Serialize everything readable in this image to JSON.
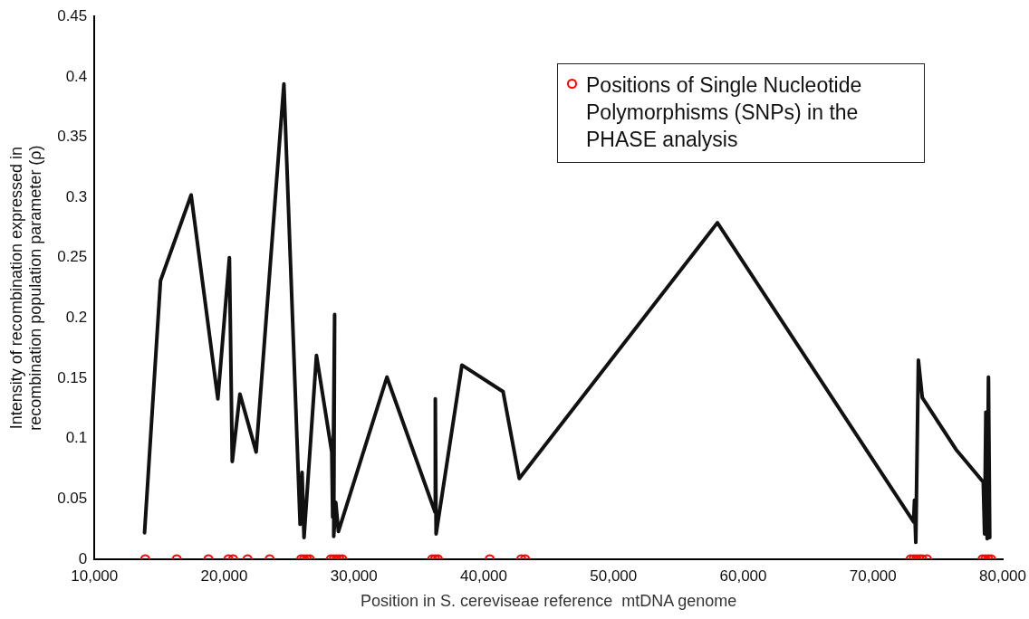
{
  "chart_data": {
    "type": "line",
    "xlabel": "Position in S. cereviseae reference  mtDNA genome",
    "ylabel": "Intensity of recombination expressed in recombination population parameter (ρ)",
    "xlim": [
      10000,
      80000
    ],
    "xticks": [
      {
        "value": 10000,
        "label": "10,000"
      },
      {
        "value": 20000,
        "label": "20,000"
      },
      {
        "value": 30000,
        "label": "30,000"
      },
      {
        "value": 40000,
        "label": "40,000"
      },
      {
        "value": 50000,
        "label": "50,000"
      },
      {
        "value": 60000,
        "label": "60,000"
      },
      {
        "value": 70000,
        "label": "70,000"
      },
      {
        "value": 80000,
        "label": "80,000"
      }
    ],
    "ylim": [
      0,
      0.45
    ],
    "yticks": [
      0,
      0.05,
      0.1,
      0.15,
      0.2,
      0.25,
      0.3,
      0.35,
      0.4,
      0.45
    ],
    "grid": false,
    "legend": "top right",
    "series": [
      {
        "color": "#111111",
        "marker": "none",
        "x": [
          13860,
          15090,
          17450,
          19510,
          20400,
          20620,
          21210,
          22460,
          24600,
          25850,
          26000,
          26150,
          27110,
          28290,
          28360,
          28510,
          28440,
          28600,
          28800,
          32540,
          36250,
          36270,
          36330,
          38320,
          41490,
          42740,
          58010,
          73130,
          73200,
          73300,
          73500,
          73800,
          76400,
          78500,
          78600,
          78700,
          78800,
          78900,
          79000
        ],
        "values": [
          0.022,
          0.231,
          0.302,
          0.133,
          0.25,
          0.081,
          0.137,
          0.089,
          0.394,
          0.029,
          0.072,
          0.018,
          0.169,
          0.089,
          0.035,
          0.203,
          0.019,
          0.047,
          0.023,
          0.151,
          0.039,
          0.133,
          0.021,
          0.161,
          0.139,
          0.067,
          0.279,
          0.031,
          0.049,
          0.014,
          0.165,
          0.134,
          0.091,
          0.064,
          0.021,
          0.122,
          0.017,
          0.151,
          0.018
        ]
      },
      {
        "type": "scatter",
        "name": "Positions of Single Nucleotide Polymorphisms (SNPs) in the PHASE analysis",
        "color": "#ff0000",
        "marker": "circle",
        "x": [
          13910,
          16340,
          18780,
          20320,
          20690,
          21800,
          23500,
          25930,
          26150,
          26370,
          26590,
          28220,
          28440,
          28660,
          28880,
          29100,
          36030,
          36250,
          36470,
          40460,
          42890,
          43190,
          72900,
          73130,
          73350,
          73570,
          73790,
          74160,
          78440,
          78660,
          78880,
          79100
        ],
        "values": [
          0,
          0,
          0,
          0,
          0,
          0,
          0,
          0,
          0,
          0,
          0,
          0,
          0,
          0,
          0,
          0,
          0,
          0,
          0,
          0,
          0,
          0,
          0,
          0,
          0,
          0,
          0,
          0,
          0,
          0,
          0,
          0
        ]
      }
    ]
  }
}
